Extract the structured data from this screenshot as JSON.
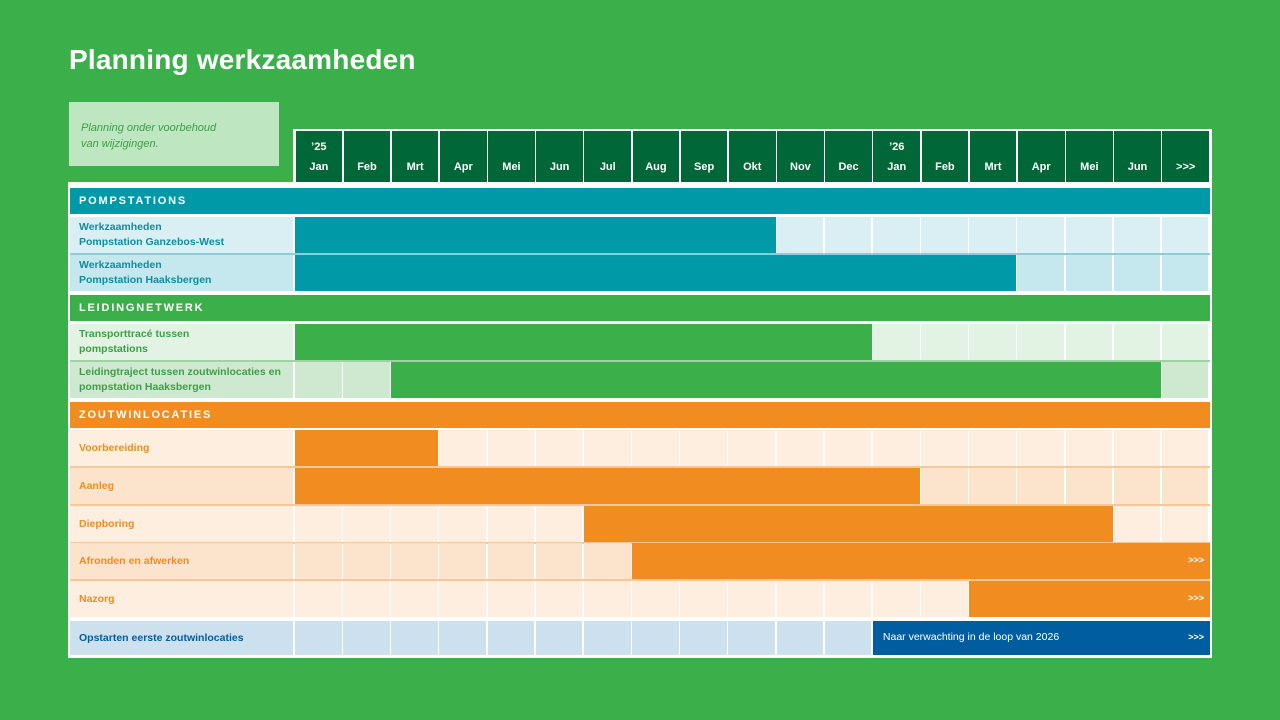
{
  "page": {
    "title": "Planning werkzaamheden",
    "note_line1": "Planning onder voorbehoud",
    "note_line2": "van wijzigingen."
  },
  "chart_data": {
    "type": "gantt",
    "title": "Planning werkzaamheden",
    "columns": [
      {
        "year": "’25",
        "month": "Jan"
      },
      {
        "year": "",
        "month": "Feb"
      },
      {
        "year": "",
        "month": "Mrt"
      },
      {
        "year": "",
        "month": "Apr"
      },
      {
        "year": "",
        "month": "Mei"
      },
      {
        "year": "",
        "month": "Jun"
      },
      {
        "year": "",
        "month": "Jul"
      },
      {
        "year": "",
        "month": "Aug"
      },
      {
        "year": "",
        "month": "Sep"
      },
      {
        "year": "",
        "month": "Okt"
      },
      {
        "year": "",
        "month": "Nov"
      },
      {
        "year": "",
        "month": "Dec"
      },
      {
        "year": "’26",
        "month": "Jan"
      },
      {
        "year": "",
        "month": "Feb"
      },
      {
        "year": "",
        "month": "Mrt"
      },
      {
        "year": "",
        "month": "Apr"
      },
      {
        "year": "",
        "month": "Mei"
      },
      {
        "year": "",
        "month": "Jun"
      },
      {
        "year": "",
        "month": ">>>"
      }
    ],
    "sections": [
      {
        "name": "POMPSTATIONS",
        "color": "#0099a8",
        "cell_colors": [
          "#d9eff3",
          "#c5e8ee"
        ],
        "label_color": "#0a8fa0",
        "tasks": [
          {
            "label": "Werkzaamheden\nPompstation Ganzebos-West",
            "start": 0,
            "end": 10,
            "continues": false
          },
          {
            "label": "Werkzaamheden\nPompstation Haaksbergen",
            "start": 0,
            "end": 15,
            "continues": false
          }
        ]
      },
      {
        "name": "LEIDINGNETWERK",
        "color": "#3bb04a",
        "cell_colors": [
          "#e2f3e3",
          "#cfe9d1"
        ],
        "label_color": "#3aa046",
        "tasks": [
          {
            "label": "Transporttracé tussen\npompstations",
            "start": 0,
            "end": 12,
            "continues": false
          },
          {
            "label": "Leidingtraject tussen zoutwinlocaties en\npompstation Haaksbergen",
            "start": 2,
            "end": 18,
            "continues": false
          }
        ]
      },
      {
        "name": "ZOUTWINLOCATIES",
        "color": "#f08c20",
        "cell_colors": [
          "#fdeedf",
          "#fce3cb"
        ],
        "label_color": "#f08c20",
        "tasks": [
          {
            "label": "Voorbereiding",
            "start": 0,
            "end": 3,
            "continues": false
          },
          {
            "label": "Aanleg",
            "start": 0,
            "end": 13,
            "continues": false
          },
          {
            "label": "Diepboring",
            "start": 6,
            "end": 17,
            "continues": false
          },
          {
            "label": "Afronden en afwerken",
            "start": 7,
            "end": 19,
            "continues": true
          },
          {
            "label": "Nazorg",
            "start": 14,
            "end": 19,
            "continues": true
          }
        ]
      }
    ],
    "milestone": {
      "label": "Opstarten eerste zoutwinlocaties",
      "bar_text": "Naar verwachting in de loop van 2026",
      "start": 12,
      "end": 19,
      "continues": true,
      "color": "#005ea0",
      "cell_color": "#cce0ee",
      "label_color": "#005ea0"
    },
    "continue_marker": ">>>"
  }
}
